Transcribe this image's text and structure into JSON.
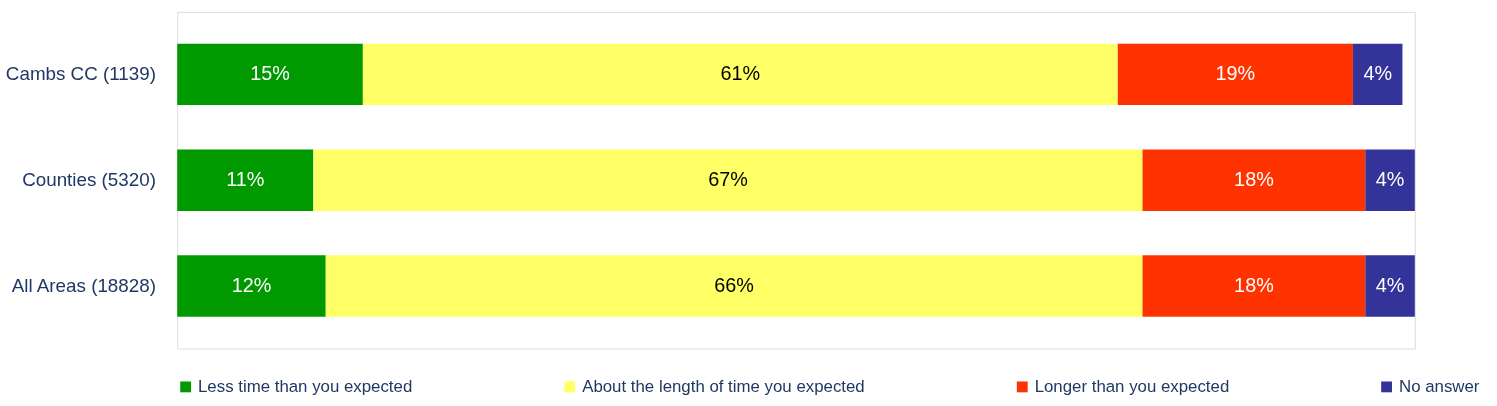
{
  "chart_data": {
    "type": "bar",
    "orientation": "horizontal",
    "stacked": true,
    "legend": "bottom",
    "categories": [
      "Cambs CC (1139)",
      "Counties (5320)",
      "All Areas (18828)"
    ],
    "series": [
      {
        "name": "Less time than you expected",
        "color": "#009900",
        "values": [
          15,
          11,
          12
        ],
        "value_labels": [
          "15%",
          "11%",
          "12%"
        ]
      },
      {
        "name": "About the length of time you expected",
        "color": "#ffff66",
        "values": [
          61,
          67,
          66
        ],
        "value_labels": [
          "61%",
          "67%",
          "66%"
        ]
      },
      {
        "name": "Longer than you expected",
        "color": "#ff3300",
        "values": [
          19,
          18,
          18
        ],
        "value_labels": [
          "19%",
          "18%",
          "18%"
        ]
      },
      {
        "name": "No answer",
        "color": "#333399",
        "values": [
          4,
          4,
          4
        ],
        "value_labels": [
          "4%",
          "4%",
          "4%"
        ]
      }
    ]
  }
}
